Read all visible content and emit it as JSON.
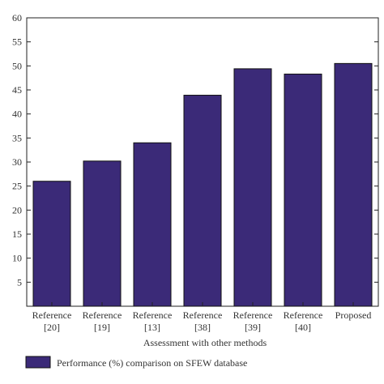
{
  "chart_data": {
    "type": "bar",
    "categories": [
      [
        "Reference",
        "[20]"
      ],
      [
        "Reference",
        "[19]"
      ],
      [
        "Reference",
        "[13]"
      ],
      [
        "Reference",
        "[38]"
      ],
      [
        "Reference",
        "[39]"
      ],
      [
        "Reference",
        "[40]"
      ],
      [
        "Proposed"
      ]
    ],
    "series": [
      {
        "name": "Performance (%) comparison on SFEW database",
        "values": [
          26.0,
          30.2,
          34.0,
          43.9,
          49.4,
          48.3,
          50.5
        ],
        "color": "#3b2a78"
      }
    ],
    "xlabel": "Assessment with other methods",
    "ylabel": "",
    "ylim": [
      0,
      60
    ],
    "yticks": [
      5,
      10,
      15,
      20,
      25,
      30,
      35,
      40,
      45,
      50,
      55,
      60
    ],
    "grid": false,
    "legend_position": "bottom-left"
  }
}
